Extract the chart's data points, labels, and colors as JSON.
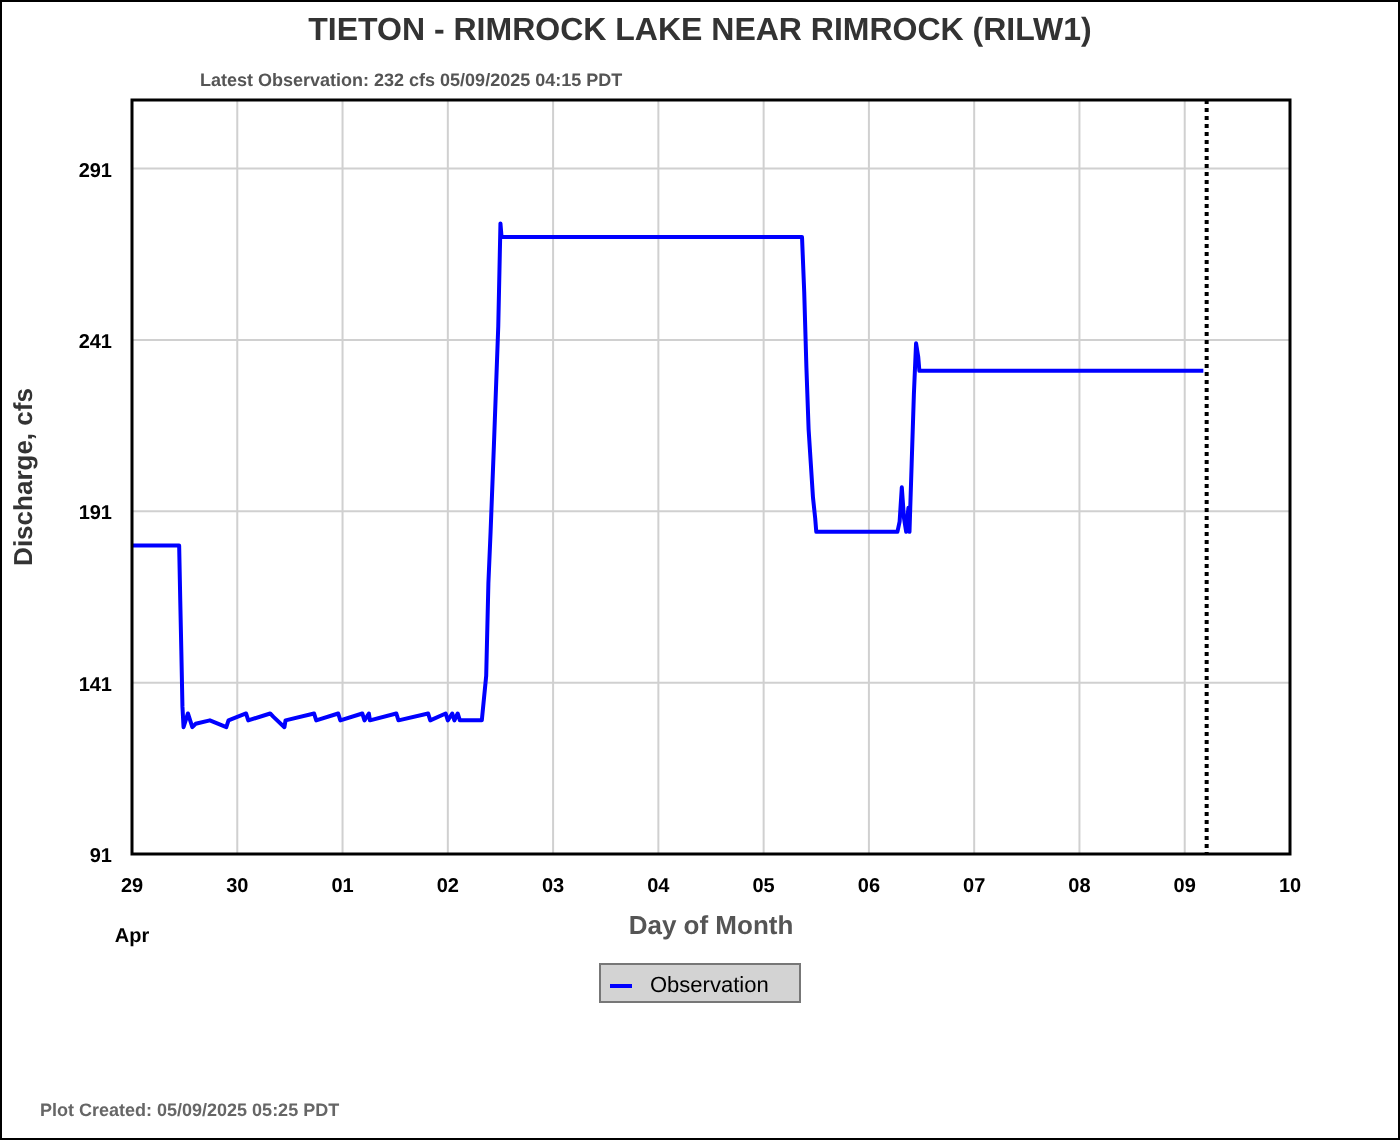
{
  "chart_data": {
    "type": "line",
    "title": "TIETON - RIMROCK LAKE NEAR RIMROCK  (RILW1)",
    "subtitle": "Latest Observation: 232 cfs 05/09/2025 04:15 PDT",
    "xlabel": "Day of Month",
    "ylabel": "Discharge, cfs",
    "annotations": [
      "Apr",
      "Plot Created: 05/09/2025 05:25 PDT"
    ],
    "xlim": [
      "2025-04-29",
      "2025-05-10"
    ],
    "xticks": [
      {
        "value": "2025-04-29",
        "label": "29"
      },
      {
        "value": "2025-04-30",
        "label": "30"
      },
      {
        "value": "2025-05-01",
        "label": "01"
      },
      {
        "value": "2025-05-02",
        "label": "02"
      },
      {
        "value": "2025-05-03",
        "label": "03"
      },
      {
        "value": "2025-05-04",
        "label": "04"
      },
      {
        "value": "2025-05-05",
        "label": "05"
      },
      {
        "value": "2025-05-06",
        "label": "06"
      },
      {
        "value": "2025-05-07",
        "label": "07"
      },
      {
        "value": "2025-05-08",
        "label": "08"
      },
      {
        "value": "2025-05-09",
        "label": "09"
      },
      {
        "value": "2025-05-10",
        "label": "10"
      }
    ],
    "ylim": [
      91,
      311
    ],
    "yticks": [
      91,
      141,
      191,
      241,
      291
    ],
    "grid": true,
    "legend": "bottom",
    "line_style": "solid",
    "marker": "none",
    "ref_lines": [
      {
        "axis": "x",
        "value": "2025-05-09T05:00",
        "line_style": "dotted",
        "color": "#000000"
      }
    ],
    "series": [
      {
        "name": "Observation",
        "color": "#0000ff",
        "x": [
          "2025-04-29T00:00",
          "2025-04-29T10:45",
          "2025-04-29T11:00",
          "2025-04-29T11:15",
          "2025-04-29T11:30",
          "2025-04-29T11:45",
          "2025-04-29T12:45",
          "2025-04-29T13:45",
          "2025-04-29T14:30",
          "2025-04-29T17:45",
          "2025-04-29T21:30",
          "2025-04-29T22:00",
          "2025-04-30T02:00",
          "2025-04-30T02:30",
          "2025-04-30T07:30",
          "2025-04-30T08:15",
          "2025-04-30T10:45",
          "2025-04-30T11:00",
          "2025-04-30T17:30",
          "2025-04-30T18:00",
          "2025-04-30T23:00",
          "2025-04-30T23:30",
          "2025-05-01T04:30",
          "2025-05-01T05:00",
          "2025-05-01T06:00",
          "2025-05-01T06:15",
          "2025-05-01T12:15",
          "2025-05-01T12:45",
          "2025-05-01T19:30",
          "2025-05-01T20:00",
          "2025-05-01T23:30",
          "2025-05-02T00:00",
          "2025-05-02T01:00",
          "2025-05-02T01:30",
          "2025-05-02T02:15",
          "2025-05-02T02:45",
          "2025-05-02T07:45",
          "2025-05-02T08:45",
          "2025-05-02T09:15",
          "2025-05-02T09:45",
          "2025-05-02T10:30",
          "2025-05-02T11:30",
          "2025-05-02T12:00",
          "2025-05-02T12:15",
          "2025-05-05T08:45",
          "2025-05-05T09:15",
          "2025-05-05T09:45",
          "2025-05-05T10:15",
          "2025-05-05T10:45",
          "2025-05-05T11:15",
          "2025-05-05T11:45",
          "2025-05-05T12:00",
          "2025-05-06T06:30",
          "2025-05-06T07:00",
          "2025-05-06T07:30",
          "2025-05-06T08:00",
          "2025-05-06T08:30",
          "2025-05-06T09:00",
          "2025-05-06T09:15",
          "2025-05-06T09:45",
          "2025-05-06T10:15",
          "2025-05-06T10:45",
          "2025-05-06T11:15",
          "2025-05-06T11:30",
          "2025-05-09T04:15"
        ],
        "values": [
          181,
          181,
          165,
          150,
          134,
          128,
          132,
          128,
          129,
          130,
          128,
          130,
          132,
          130,
          132,
          131,
          128,
          130,
          132,
          130,
          132,
          130,
          132,
          130,
          132,
          130,
          132,
          130,
          132,
          130,
          132,
          130,
          132,
          130,
          132,
          130,
          130,
          143,
          170,
          185,
          210,
          245,
          275,
          271,
          271,
          255,
          233,
          215,
          205,
          195,
          189,
          185,
          185,
          188,
          198,
          189,
          185,
          192,
          185,
          205,
          225,
          240,
          236,
          232,
          232
        ]
      }
    ]
  }
}
